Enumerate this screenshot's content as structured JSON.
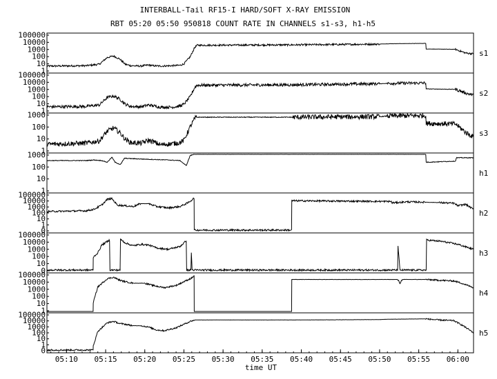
{
  "chart_data": {
    "type": "line",
    "title": "INTERBALL-Tail RF15-I HARD/SOFT X-RAY EMISSION",
    "subtitle": "RBT 05:20 05:50 950818  COUNT RATE IN CHANNELS s1-s3, h1-h5",
    "xlabel": "time UT",
    "x_ticks": [
      "05:10",
      "05:15",
      "05:20",
      "05:25",
      "05:30",
      "05:35",
      "05:40",
      "05:45",
      "05:50",
      "05:55",
      "06:00"
    ],
    "x_tick_minutes": [
      10,
      15,
      20,
      25,
      30,
      35,
      40,
      45,
      50,
      55,
      60
    ],
    "xlim_minutes": [
      7.5,
      62
    ],
    "y_scale": "log",
    "grid": false,
    "panels": [
      {
        "name": "s1",
        "y_ticks": [
          "100000",
          "10000",
          "1000",
          "100",
          "10",
          "1"
        ],
        "ylim_log10": [
          0,
          5
        ],
        "noise": 0.12,
        "points": [
          [
            7.5,
            0.75
          ],
          [
            12.5,
            0.8
          ],
          [
            14.2,
            1.0
          ],
          [
            15.2,
            1.9
          ],
          [
            16.0,
            2.1
          ],
          [
            16.8,
            1.7
          ],
          [
            17.5,
            1.0
          ],
          [
            18.2,
            0.8
          ],
          [
            19.5,
            0.75
          ],
          [
            20.5,
            0.9
          ],
          [
            21.0,
            0.8
          ],
          [
            22.0,
            0.75
          ],
          [
            23.5,
            0.8
          ],
          [
            24.5,
            0.85
          ],
          [
            25.0,
            1.05
          ],
          [
            25.8,
            2.0
          ],
          [
            26.4,
            3.3
          ],
          [
            26.7,
            3.55
          ],
          [
            38.9,
            3.6
          ],
          [
            50.0,
            3.7
          ],
          [
            51.0,
            3.75
          ],
          [
            55.9,
            3.8
          ],
          [
            55.95,
            3.05
          ],
          [
            59.7,
            3.0
          ],
          [
            61.0,
            2.5
          ],
          [
            62.0,
            2.4
          ]
        ]
      },
      {
        "name": "s2",
        "y_ticks": [
          "100000",
          "10000",
          "1000",
          "100",
          "10",
          "1"
        ],
        "ylim_log10": [
          0,
          5
        ],
        "noise": 0.2,
        "points": [
          [
            7.5,
            0.65
          ],
          [
            12.5,
            0.7
          ],
          [
            14.2,
            0.9
          ],
          [
            15.2,
            1.9
          ],
          [
            16.0,
            2.1
          ],
          [
            16.8,
            1.7
          ],
          [
            17.5,
            1.0
          ],
          [
            18.2,
            0.7
          ],
          [
            19.5,
            0.65
          ],
          [
            20.5,
            0.9
          ],
          [
            21.0,
            0.8
          ],
          [
            22.0,
            0.6
          ],
          [
            23.5,
            0.6
          ],
          [
            24.5,
            0.75
          ],
          [
            25.0,
            1.0
          ],
          [
            25.8,
            2.0
          ],
          [
            26.4,
            3.3
          ],
          [
            26.7,
            3.55
          ],
          [
            38.9,
            3.6
          ],
          [
            50.0,
            3.75
          ],
          [
            51.0,
            3.8
          ],
          [
            55.9,
            3.85
          ],
          [
            55.95,
            3.05
          ],
          [
            59.7,
            3.0
          ],
          [
            61.0,
            2.5
          ],
          [
            62.0,
            2.2
          ]
        ]
      },
      {
        "name": "s3",
        "y_ticks": [
          "1000",
          "100",
          "10",
          "1"
        ],
        "ylim_log10": [
          0,
          3.3
        ],
        "noise": 0.22,
        "points": [
          [
            7.5,
            0.65
          ],
          [
            12.5,
            0.75
          ],
          [
            14.2,
            0.95
          ],
          [
            15.2,
            1.8
          ],
          [
            16.0,
            2.1
          ],
          [
            16.8,
            1.7
          ],
          [
            17.5,
            1.1
          ],
          [
            18.2,
            0.8
          ],
          [
            19.5,
            0.75
          ],
          [
            20.5,
            1.0
          ],
          [
            21.0,
            0.9
          ],
          [
            22.0,
            0.6
          ],
          [
            23.5,
            0.7
          ],
          [
            24.5,
            0.8
          ],
          [
            25.0,
            1.0
          ],
          [
            25.8,
            2.2
          ],
          [
            26.4,
            2.95
          ],
          [
            26.7,
            3.05
          ],
          [
            38.9,
            3.05
          ],
          [
            50.0,
            3.1
          ],
          [
            51.0,
            3.15
          ],
          [
            55.9,
            3.2
          ],
          [
            55.95,
            2.5
          ],
          [
            59.7,
            2.45
          ],
          [
            61.0,
            1.7
          ],
          [
            62.0,
            1.3
          ]
        ]
      },
      {
        "name": "h1",
        "y_ticks": [
          "1000",
          "100",
          "10",
          "1"
        ],
        "ylim_log10": [
          0,
          3.3
        ],
        "noise": 0.03,
        "points": [
          [
            7.5,
            2.75
          ],
          [
            12.5,
            2.75
          ],
          [
            13.5,
            2.8
          ],
          [
            14.5,
            2.75
          ],
          [
            15.2,
            2.6
          ],
          [
            15.8,
            3.05
          ],
          [
            16.2,
            2.6
          ],
          [
            16.9,
            2.4
          ],
          [
            17.4,
            2.95
          ],
          [
            19.0,
            2.9
          ],
          [
            21.0,
            2.85
          ],
          [
            23.0,
            2.8
          ],
          [
            24.5,
            2.75
          ],
          [
            25.3,
            2.3
          ],
          [
            25.8,
            3.2
          ],
          [
            26.3,
            3.3
          ],
          [
            55.9,
            3.3
          ],
          [
            55.95,
            2.6
          ],
          [
            59.7,
            2.7
          ],
          [
            59.8,
            3.0
          ],
          [
            61.0,
            3.0
          ],
          [
            62.0,
            3.0
          ]
        ]
      },
      {
        "name": "h2",
        "y_ticks": [
          "100000",
          "10000",
          "1000",
          "100",
          "10",
          "1",
          "0"
        ],
        "ylim_log10": [
          -0.2,
          5
        ],
        "noise": 0.12,
        "points": [
          [
            7.5,
            2.6
          ],
          [
            12.5,
            2.7
          ],
          [
            13.5,
            2.9
          ],
          [
            14.5,
            3.5
          ],
          [
            15.2,
            4.3
          ],
          [
            15.8,
            4.4
          ],
          [
            16.5,
            3.5
          ],
          [
            18.5,
            3.3
          ],
          [
            19.5,
            3.7
          ],
          [
            20.5,
            3.7
          ],
          [
            21.5,
            3.3
          ],
          [
            23.0,
            3.1
          ],
          [
            24.5,
            3.3
          ],
          [
            25.5,
            3.8
          ],
          [
            26.0,
            4.2
          ],
          [
            26.3,
            4.5
          ],
          [
            26.32,
            0.0
          ],
          [
            38.75,
            0.0
          ],
          [
            38.78,
            4.1
          ],
          [
            51.5,
            4.0
          ],
          [
            51.55,
            3.8
          ],
          [
            53.5,
            3.95
          ],
          [
            55.9,
            3.9
          ],
          [
            57.5,
            3.85
          ],
          [
            59.5,
            3.75
          ],
          [
            60.0,
            3.4
          ],
          [
            61.0,
            3.6
          ],
          [
            62.0,
            2.9
          ]
        ]
      },
      {
        "name": "h3",
        "y_ticks": [
          "100000",
          "10000",
          "1000",
          "100",
          "10",
          "0"
        ],
        "ylim_log10": [
          -0.2,
          5
        ],
        "noise": 0.12,
        "points": [
          [
            7.5,
            0.0
          ],
          [
            13.4,
            0.0
          ],
          [
            13.42,
            1.8
          ],
          [
            14.0,
            2.4
          ],
          [
            14.5,
            3.5
          ],
          [
            15.5,
            4.2
          ],
          [
            15.55,
            0.0
          ],
          [
            16.85,
            0.0
          ],
          [
            16.9,
            4.3
          ],
          [
            17.5,
            3.8
          ],
          [
            18.5,
            3.4
          ],
          [
            19.5,
            3.6
          ],
          [
            20.5,
            3.5
          ],
          [
            21.5,
            3.1
          ],
          [
            23.0,
            2.9
          ],
          [
            24.5,
            3.3
          ],
          [
            25.3,
            4.1
          ],
          [
            25.35,
            0.0
          ],
          [
            25.9,
            0.0
          ],
          [
            25.95,
            2.5
          ],
          [
            26.05,
            0.0
          ],
          [
            52.3,
            0.0
          ],
          [
            52.35,
            3.4
          ],
          [
            52.6,
            0.0
          ],
          [
            55.95,
            0.0
          ],
          [
            56.0,
            4.2
          ],
          [
            58.0,
            4.0
          ],
          [
            60.0,
            3.6
          ],
          [
            62.0,
            2.9
          ]
        ]
      },
      {
        "name": "h4",
        "y_ticks": [
          "100000",
          "10000",
          "1000",
          "100",
          "10",
          "1"
        ],
        "ylim_log10": [
          0,
          5
        ],
        "noise": 0.1,
        "points": [
          [
            7.5,
            0.0
          ],
          [
            13.4,
            0.0
          ],
          [
            13.42,
            1.2
          ],
          [
            14.0,
            3.3
          ],
          [
            15.2,
            4.4
          ],
          [
            16.0,
            4.6
          ],
          [
            16.8,
            4.2
          ],
          [
            17.5,
            4.0
          ],
          [
            18.5,
            3.8
          ],
          [
            20.0,
            3.8
          ],
          [
            21.0,
            3.5
          ],
          [
            22.5,
            3.2
          ],
          [
            24.0,
            3.5
          ],
          [
            25.0,
            4.0
          ],
          [
            26.0,
            4.5
          ],
          [
            26.3,
            4.8
          ],
          [
            26.32,
            0.0
          ],
          [
            38.75,
            0.0
          ],
          [
            38.78,
            4.3
          ],
          [
            52.3,
            4.3
          ],
          [
            52.6,
            3.8
          ],
          [
            52.9,
            4.3
          ],
          [
            55.9,
            4.3
          ],
          [
            57.5,
            4.2
          ],
          [
            59.5,
            4.1
          ],
          [
            60.5,
            3.8
          ],
          [
            61.5,
            3.4
          ],
          [
            62.0,
            3.2
          ]
        ]
      },
      {
        "name": "h5",
        "y_ticks": [
          "100000",
          "10000",
          "1000",
          "100",
          "10",
          "1",
          "0"
        ],
        "ylim_log10": [
          -0.2,
          5
        ],
        "noise": 0.1,
        "points": [
          [
            7.5,
            0.0
          ],
          [
            13.4,
            0.0
          ],
          [
            13.42,
            0.6
          ],
          [
            14.0,
            2.6
          ],
          [
            15.2,
            3.8
          ],
          [
            16.0,
            4.0
          ],
          [
            16.8,
            3.7
          ],
          [
            17.5,
            3.6
          ],
          [
            18.5,
            3.4
          ],
          [
            19.5,
            3.4
          ],
          [
            20.5,
            3.2
          ],
          [
            21.5,
            2.8
          ],
          [
            22.5,
            2.7
          ],
          [
            24.0,
            3.1
          ],
          [
            25.0,
            3.6
          ],
          [
            25.8,
            4.0
          ],
          [
            26.4,
            4.2
          ],
          [
            38.9,
            4.2
          ],
          [
            50.0,
            4.25
          ],
          [
            51.0,
            4.3
          ],
          [
            55.9,
            4.35
          ],
          [
            57.5,
            4.2
          ],
          [
            59.5,
            4.1
          ],
          [
            60.5,
            3.5
          ],
          [
            61.5,
            2.8
          ],
          [
            62.0,
            2.4
          ]
        ]
      }
    ]
  }
}
